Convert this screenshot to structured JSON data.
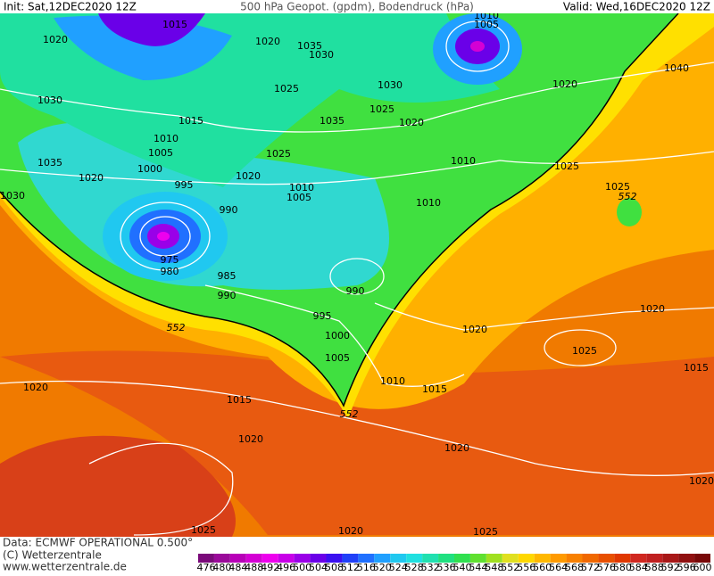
{
  "header": {
    "init": "Init: Sat,12DEC2020 12Z",
    "title": "500 hPa Geopot. (gpdm), Bodendruck (hPa)",
    "valid": "Valid: Wed,16DEC2020 12Z"
  },
  "footer": {
    "data": "Data: ECMWF OPERATIONAL 0.500°",
    "copyright": "(C) Wetterzentrale",
    "url": "www.wetterzentrale.de"
  },
  "legend": {
    "values": [
      476,
      480,
      484,
      488,
      492,
      496,
      500,
      504,
      508,
      512,
      516,
      520,
      524,
      528,
      532,
      536,
      540,
      544,
      548,
      552,
      556,
      560,
      564,
      568,
      572,
      576,
      580,
      584,
      588,
      592,
      596,
      600
    ],
    "colors": [
      "#7a0a7a",
      "#9a0a9a",
      "#b800b8",
      "#d400d4",
      "#ee00ee",
      "#c800e8",
      "#9a00e8",
      "#6a00e8",
      "#3a10f0",
      "#2040f8",
      "#2070ff",
      "#20a0ff",
      "#20c8f0",
      "#20e0e0",
      "#20e0b0",
      "#20e080",
      "#30e050",
      "#60e030",
      "#a0e020",
      "#e0e020",
      "#ffd800",
      "#ffb800",
      "#ff9a00",
      "#f88000",
      "#f06800",
      "#e85000",
      "#e03800",
      "#d02820",
      "#c02020",
      "#a81818",
      "#901010",
      "#780808"
    ]
  },
  "isobar_labels": [
    "1015",
    "1020",
    "1020",
    "1035",
    "1030",
    "1010",
    "1005",
    "1040",
    "1020",
    "1030",
    "1025",
    "1025",
    "1030",
    "1015",
    "1035",
    "1020",
    "1010",
    "1005",
    "1025",
    "1000",
    "1035",
    "1010",
    "1025",
    "1020",
    "1020",
    "995",
    "1025",
    "1030",
    "1010",
    "1005",
    "1010",
    "990",
    "975",
    "980",
    "985",
    "990",
    "990",
    "995",
    "1000",
    "1005",
    "1020",
    "1020",
    "1025",
    "1015",
    "1010",
    "1015",
    "1020",
    "1015",
    "1020",
    "1020",
    "1020",
    "1025",
    "1020",
    "1025"
  ],
  "contour_labels": [
    "552",
    "552",
    "552"
  ]
}
